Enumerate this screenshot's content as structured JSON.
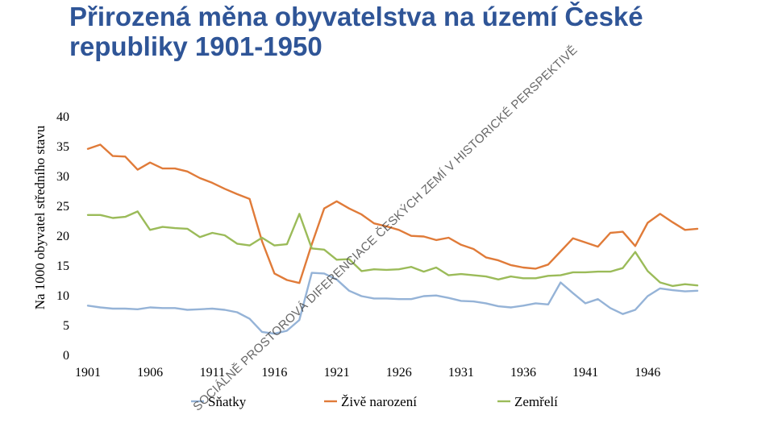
{
  "chart_data": {
    "type": "line",
    "title": "Přirozená měna obyvatelstva na území České republiky 1901-1950",
    "ylabel": "Na 1000 obyvatel středního stavu",
    "xlabel": "",
    "ylim": [
      0,
      40
    ],
    "yticks": [
      0,
      5,
      10,
      15,
      20,
      25,
      30,
      35,
      40
    ],
    "xticks": [
      "1901",
      "1906",
      "1911",
      "1916",
      "1921",
      "1926",
      "1931",
      "1936",
      "1941",
      "1946"
    ],
    "x": [
      1901,
      1902,
      1903,
      1904,
      1905,
      1906,
      1907,
      1908,
      1909,
      1910,
      1911,
      1912,
      1913,
      1914,
      1915,
      1916,
      1917,
      1918,
      1919,
      1920,
      1921,
      1922,
      1923,
      1924,
      1925,
      1926,
      1927,
      1928,
      1929,
      1930,
      1931,
      1932,
      1933,
      1934,
      1935,
      1936,
      1937,
      1938,
      1939,
      1940,
      1941,
      1942,
      1943,
      1944,
      1945,
      1946,
      1947,
      1948,
      1949,
      1950
    ],
    "grid": false,
    "legend_position": "bottom",
    "series": [
      {
        "name": "Sňatky",
        "color": "#95b3d7",
        "values": [
          8.2,
          7.9,
          7.7,
          7.7,
          7.6,
          7.9,
          7.8,
          7.8,
          7.5,
          7.6,
          7.7,
          7.5,
          7.1,
          6.0,
          3.8,
          3.5,
          4.0,
          5.8,
          13.7,
          13.6,
          12.6,
          10.7,
          9.8,
          9.4,
          9.4,
          9.3,
          9.3,
          9.8,
          9.9,
          9.5,
          9.0,
          8.9,
          8.6,
          8.1,
          7.9,
          8.2,
          8.6,
          8.4,
          12.1,
          10.3,
          8.6,
          9.3,
          7.8,
          6.8,
          7.5,
          9.8,
          11.1,
          10.8,
          10.6,
          10.7
        ]
      },
      {
        "name": "Živě narození",
        "color": "#e07b39",
        "values": [
          34.5,
          35.2,
          33.3,
          33.2,
          31.0,
          32.2,
          31.2,
          31.2,
          30.7,
          29.6,
          28.8,
          27.8,
          26.9,
          26.1,
          19.0,
          13.6,
          12.5,
          12.0,
          18.5,
          24.5,
          25.7,
          24.5,
          23.5,
          22.0,
          21.5,
          20.9,
          19.9,
          19.8,
          19.2,
          19.6,
          18.4,
          17.7,
          16.3,
          15.8,
          15.0,
          14.6,
          14.4,
          15.1,
          17.3,
          19.5,
          18.8,
          18.1,
          20.4,
          20.6,
          18.2,
          22.1,
          23.6,
          22.2,
          20.9,
          21.1
        ]
      },
      {
        "name": "Zemřelí",
        "color": "#9bbb59",
        "values": [
          23.4,
          23.4,
          22.9,
          23.1,
          24.0,
          20.9,
          21.4,
          21.2,
          21.1,
          19.7,
          20.4,
          20.0,
          18.6,
          18.3,
          19.6,
          18.3,
          18.5,
          23.6,
          17.8,
          17.6,
          15.9,
          16.0,
          14.0,
          14.3,
          14.2,
          14.3,
          14.7,
          13.9,
          14.6,
          13.3,
          13.5,
          13.3,
          13.1,
          12.6,
          13.1,
          12.8,
          12.8,
          13.2,
          13.3,
          13.8,
          13.8,
          13.9,
          13.9,
          14.5,
          17.2,
          14.0,
          12.1,
          11.5,
          11.8,
          11.6
        ]
      }
    ]
  },
  "watermark": "SOCIÁLNĚ PROSTOROVÁ DIFERENCIACE ČESKÝCH ZEMÍ V HISTORICKÉ PERSPEKTIVĚ"
}
